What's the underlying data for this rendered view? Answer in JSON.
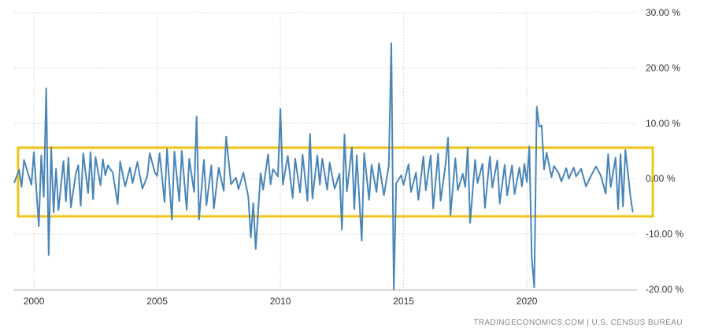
{
  "chart_data": {
    "type": "line",
    "title": "",
    "xlabel": "",
    "ylabel": "",
    "x_ticks": [
      "2000",
      "2005",
      "2010",
      "2015",
      "2020"
    ],
    "y_ticks": [
      "30.00 %",
      "20.00 %",
      "10.00 %",
      "0.00 %",
      "-10.00 %",
      "-20.00 %"
    ],
    "ylim": [
      -20,
      30
    ],
    "xlim": [
      1999.2,
      2024.5
    ],
    "grid": true,
    "line_color": "#4a85b8",
    "highlight_box": {
      "y_range": [
        -6.8,
        5.6
      ],
      "border_color": "#f0c419"
    },
    "series": [
      {
        "values": [
          [
            1999.2,
            -0.8
          ],
          [
            1999.4,
            1.6
          ],
          [
            1999.5,
            -1.5
          ],
          [
            1999.6,
            3.4
          ],
          [
            1999.8,
            0.4
          ],
          [
            1999.9,
            -1.1
          ],
          [
            2000.0,
            4.8
          ],
          [
            2000.2,
            -8.6
          ],
          [
            2000.3,
            4.2
          ],
          [
            2000.4,
            -3.3
          ],
          [
            2000.5,
            16.3
          ],
          [
            2000.6,
            -13.8
          ],
          [
            2000.7,
            5.6
          ],
          [
            2000.8,
            -6.1
          ],
          [
            2000.9,
            1.8
          ],
          [
            2001.0,
            -5.7
          ],
          [
            2001.2,
            3.2
          ],
          [
            2001.3,
            -4.1
          ],
          [
            2001.4,
            3.8
          ],
          [
            2001.5,
            -5.2
          ],
          [
            2001.7,
            0.9
          ],
          [
            2001.8,
            2.4
          ],
          [
            2001.9,
            -4.9
          ],
          [
            2002.0,
            4.6
          ],
          [
            2002.2,
            -2.6
          ],
          [
            2002.3,
            4.8
          ],
          [
            2002.4,
            -3.7
          ],
          [
            2002.5,
            3.9
          ],
          [
            2002.7,
            -1.2
          ],
          [
            2002.8,
            3.5
          ],
          [
            2002.9,
            0.6
          ],
          [
            2003.0,
            2.4
          ],
          [
            2003.2,
            1.1
          ],
          [
            2003.4,
            -4.6
          ],
          [
            2003.5,
            3.1
          ],
          [
            2003.7,
            -1.4
          ],
          [
            2003.9,
            2.0
          ],
          [
            2004.0,
            -0.8
          ],
          [
            2004.2,
            3.0
          ],
          [
            2004.4,
            -1.8
          ],
          [
            2004.6,
            0.4
          ],
          [
            2004.7,
            4.6
          ],
          [
            2004.9,
            1.2
          ],
          [
            2005.0,
            0.5
          ],
          [
            2005.1,
            4.6
          ],
          [
            2005.3,
            -4.2
          ],
          [
            2005.4,
            5.4
          ],
          [
            2005.6,
            -7.4
          ],
          [
            2005.7,
            4.9
          ],
          [
            2005.9,
            -4.1
          ],
          [
            2006.0,
            5.0
          ],
          [
            2006.2,
            -5.6
          ],
          [
            2006.3,
            3.6
          ],
          [
            2006.5,
            -2.4
          ],
          [
            2006.6,
            11.2
          ],
          [
            2006.7,
            -7.4
          ],
          [
            2006.9,
            3.4
          ],
          [
            2007.0,
            -4.8
          ],
          [
            2007.2,
            2.4
          ],
          [
            2007.3,
            -5.4
          ],
          [
            2007.5,
            2.0
          ],
          [
            2007.7,
            -2.2
          ],
          [
            2007.8,
            7.6
          ],
          [
            2008.0,
            -1.0
          ],
          [
            2008.2,
            0.2
          ],
          [
            2008.3,
            -1.9
          ],
          [
            2008.5,
            1.1
          ],
          [
            2008.7,
            -3.3
          ],
          [
            2008.8,
            -10.6
          ],
          [
            2008.9,
            -4.4
          ],
          [
            2009.0,
            -12.7
          ],
          [
            2009.2,
            1.0
          ],
          [
            2009.3,
            -2.0
          ],
          [
            2009.5,
            4.4
          ],
          [
            2009.6,
            -1.0
          ],
          [
            2009.7,
            1.7
          ],
          [
            2009.9,
            0.4
          ],
          [
            2010.0,
            12.6
          ],
          [
            2010.1,
            -1.1
          ],
          [
            2010.3,
            4.1
          ],
          [
            2010.5,
            -3.5
          ],
          [
            2010.6,
            3.6
          ],
          [
            2010.8,
            -2.5
          ],
          [
            2010.9,
            4.3
          ],
          [
            2011.1,
            -4.0
          ],
          [
            2011.2,
            8.1
          ],
          [
            2011.3,
            -3.6
          ],
          [
            2011.5,
            4.2
          ],
          [
            2011.6,
            -1.1
          ],
          [
            2011.7,
            3.6
          ],
          [
            2011.9,
            -2.0
          ],
          [
            2012.0,
            2.9
          ],
          [
            2012.2,
            -1.8
          ],
          [
            2012.4,
            0.9
          ],
          [
            2012.5,
            -9.2
          ],
          [
            2012.6,
            8.0
          ],
          [
            2012.7,
            -2.3
          ],
          [
            2012.9,
            5.6
          ],
          [
            2013.0,
            -5.5
          ],
          [
            2013.1,
            4.2
          ],
          [
            2013.3,
            -11.2
          ],
          [
            2013.4,
            4.6
          ],
          [
            2013.6,
            -3.8
          ],
          [
            2013.7,
            2.5
          ],
          [
            2013.9,
            -2.4
          ],
          [
            2014.0,
            2.8
          ],
          [
            2014.2,
            -3.0
          ],
          [
            2014.4,
            2.4
          ],
          [
            2014.5,
            24.5
          ],
          [
            2014.6,
            -20.0
          ],
          [
            2014.7,
            -0.8
          ],
          [
            2014.9,
            0.6
          ],
          [
            2015.0,
            -1.1
          ],
          [
            2015.2,
            2.6
          ],
          [
            2015.3,
            -2.4
          ],
          [
            2015.5,
            1.1
          ],
          [
            2015.6,
            -3.8
          ],
          [
            2015.8,
            4.0
          ],
          [
            2015.9,
            -2.1
          ],
          [
            2016.1,
            4.2
          ],
          [
            2016.2,
            -5.4
          ],
          [
            2016.4,
            4.5
          ],
          [
            2016.5,
            -4.0
          ],
          [
            2016.7,
            2.5
          ],
          [
            2016.8,
            7.4
          ],
          [
            2016.9,
            -6.6
          ],
          [
            2017.1,
            3.7
          ],
          [
            2017.2,
            -2.1
          ],
          [
            2017.4,
            0.9
          ],
          [
            2017.5,
            -1.5
          ],
          [
            2017.6,
            5.6
          ],
          [
            2017.7,
            -8.0
          ],
          [
            2017.9,
            3.4
          ],
          [
            2018.0,
            -0.8
          ],
          [
            2018.2,
            2.7
          ],
          [
            2018.3,
            -5.3
          ],
          [
            2018.5,
            4.0
          ],
          [
            2018.6,
            -1.6
          ],
          [
            2018.8,
            3.3
          ],
          [
            2018.9,
            -4.5
          ],
          [
            2019.1,
            2.5
          ],
          [
            2019.2,
            -3.0
          ],
          [
            2019.4,
            2.4
          ],
          [
            2019.5,
            -2.8
          ],
          [
            2019.7,
            2.0
          ],
          [
            2019.8,
            -1.4
          ],
          [
            2019.9,
            2.7
          ],
          [
            2020.0,
            -0.6
          ],
          [
            2020.1,
            5.8
          ],
          [
            2020.2,
            -14.4
          ],
          [
            2020.3,
            -19.6
          ],
          [
            2020.4,
            13.0
          ],
          [
            2020.5,
            9.4
          ],
          [
            2020.6,
            9.6
          ],
          [
            2020.7,
            1.7
          ],
          [
            2020.8,
            4.7
          ],
          [
            2021.0,
            0.3
          ],
          [
            2021.1,
            2.3
          ],
          [
            2021.3,
            0.9
          ],
          [
            2021.4,
            -0.5
          ],
          [
            2021.6,
            1.9
          ],
          [
            2021.7,
            0.0
          ],
          [
            2021.9,
            2.0
          ],
          [
            2022.0,
            0.4
          ],
          [
            2022.2,
            1.8
          ],
          [
            2022.4,
            -1.4
          ],
          [
            2022.6,
            0.5
          ],
          [
            2022.8,
            2.2
          ],
          [
            2023.0,
            0.6
          ],
          [
            2023.2,
            -2.7
          ],
          [
            2023.3,
            4.4
          ],
          [
            2023.4,
            -1.5
          ],
          [
            2023.6,
            3.8
          ],
          [
            2023.7,
            -5.5
          ],
          [
            2023.8,
            4.4
          ],
          [
            2023.9,
            -5.0
          ],
          [
            2024.0,
            5.2
          ],
          [
            2024.2,
            -3.1
          ],
          [
            2024.3,
            -6.1
          ]
        ]
      }
    ],
    "source": "TRADINGECONOMICS.COM  |  U.S. CENSUS BUREAU"
  }
}
